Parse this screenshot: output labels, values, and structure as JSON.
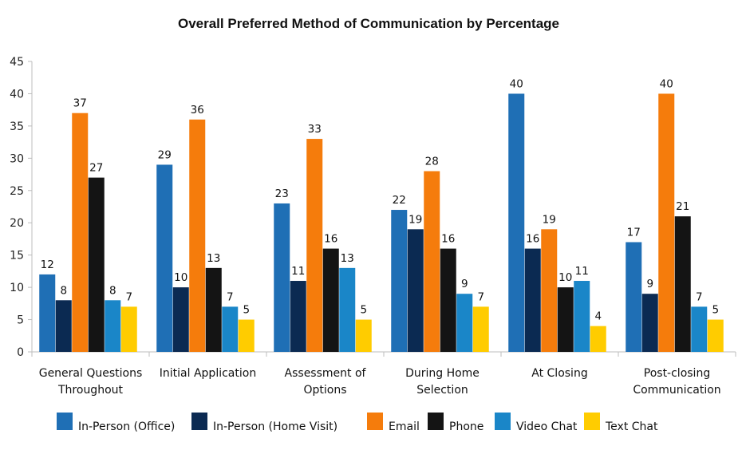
{
  "chart_data": {
    "type": "bar",
    "title": "Overall Preferred Method of Communication by Percentage",
    "xlabel": "",
    "ylabel": "",
    "ylim": [
      0,
      45
    ],
    "yticks": [
      0,
      5,
      10,
      15,
      20,
      25,
      30,
      35,
      40,
      45
    ],
    "grid": false,
    "legend_position": "bottom",
    "categories": [
      [
        "General Questions",
        "Throughout"
      ],
      [
        "Initial Application"
      ],
      [
        "Assessment of",
        "Options"
      ],
      [
        "During Home",
        "Selection"
      ],
      [
        "At Closing"
      ],
      [
        "Post-closing",
        "Communication"
      ]
    ],
    "series": [
      {
        "name": "In-Person (Office)",
        "color": "#1f6fb5",
        "values": [
          12,
          29,
          23,
          22,
          40,
          17
        ]
      },
      {
        "name": "In-Person (Home Visit)",
        "color": "#0b2a52",
        "values": [
          8,
          10,
          11,
          19,
          16,
          9
        ]
      },
      {
        "name": "Email",
        "color": "#f57c0c",
        "values": [
          37,
          36,
          33,
          28,
          19,
          40
        ]
      },
      {
        "name": "Phone",
        "color": "#141414",
        "values": [
          27,
          13,
          16,
          16,
          10,
          21
        ]
      },
      {
        "name": "Video Chat",
        "color": "#1a86c8",
        "values": [
          8,
          7,
          13,
          9,
          11,
          7
        ]
      },
      {
        "name": "Text Chat",
        "color": "#ffcc00",
        "values": [
          7,
          5,
          5,
          7,
          4,
          5
        ]
      }
    ]
  }
}
